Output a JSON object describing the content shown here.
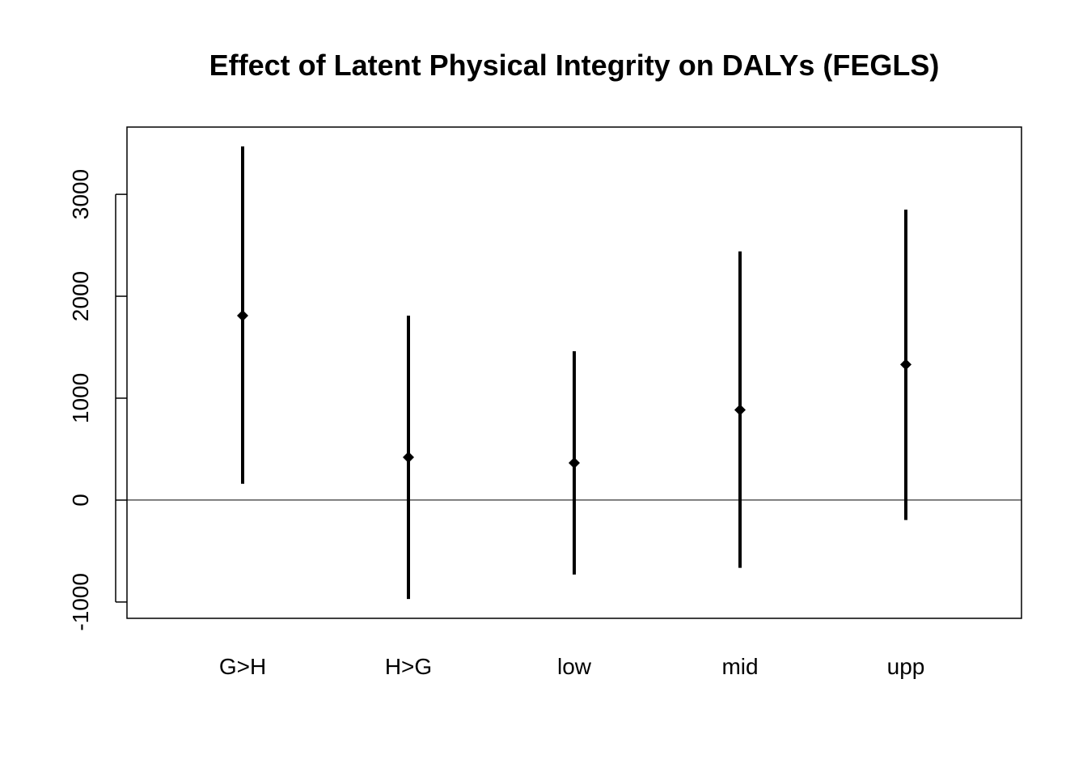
{
  "chart_data": {
    "type": "errorbar",
    "title": "Effect of Latent Physical Integrity on DALYs (FEGLS)",
    "xlabel": "",
    "ylabel": "",
    "categories": [
      "G>H",
      "H>G",
      "low",
      "mid",
      "upp"
    ],
    "series": [
      {
        "estimate": [
          1810,
          420,
          365,
          885,
          1330
        ],
        "lower": [
          160,
          -970,
          -730,
          -665,
          -195
        ],
        "upper": [
          3470,
          1810,
          1460,
          2440,
          2850
        ]
      }
    ],
    "yticks": [
      -1000,
      0,
      1000,
      2000,
      3000
    ],
    "ytick_labels": [
      "-1000",
      "0",
      "1000",
      "2000",
      "3000"
    ],
    "ylim": [
      -1160,
      3660
    ],
    "reference_line": 0,
    "grid": false,
    "legend": "none",
    "colors": {
      "marks": "#000000",
      "background": "#ffffff"
    }
  }
}
